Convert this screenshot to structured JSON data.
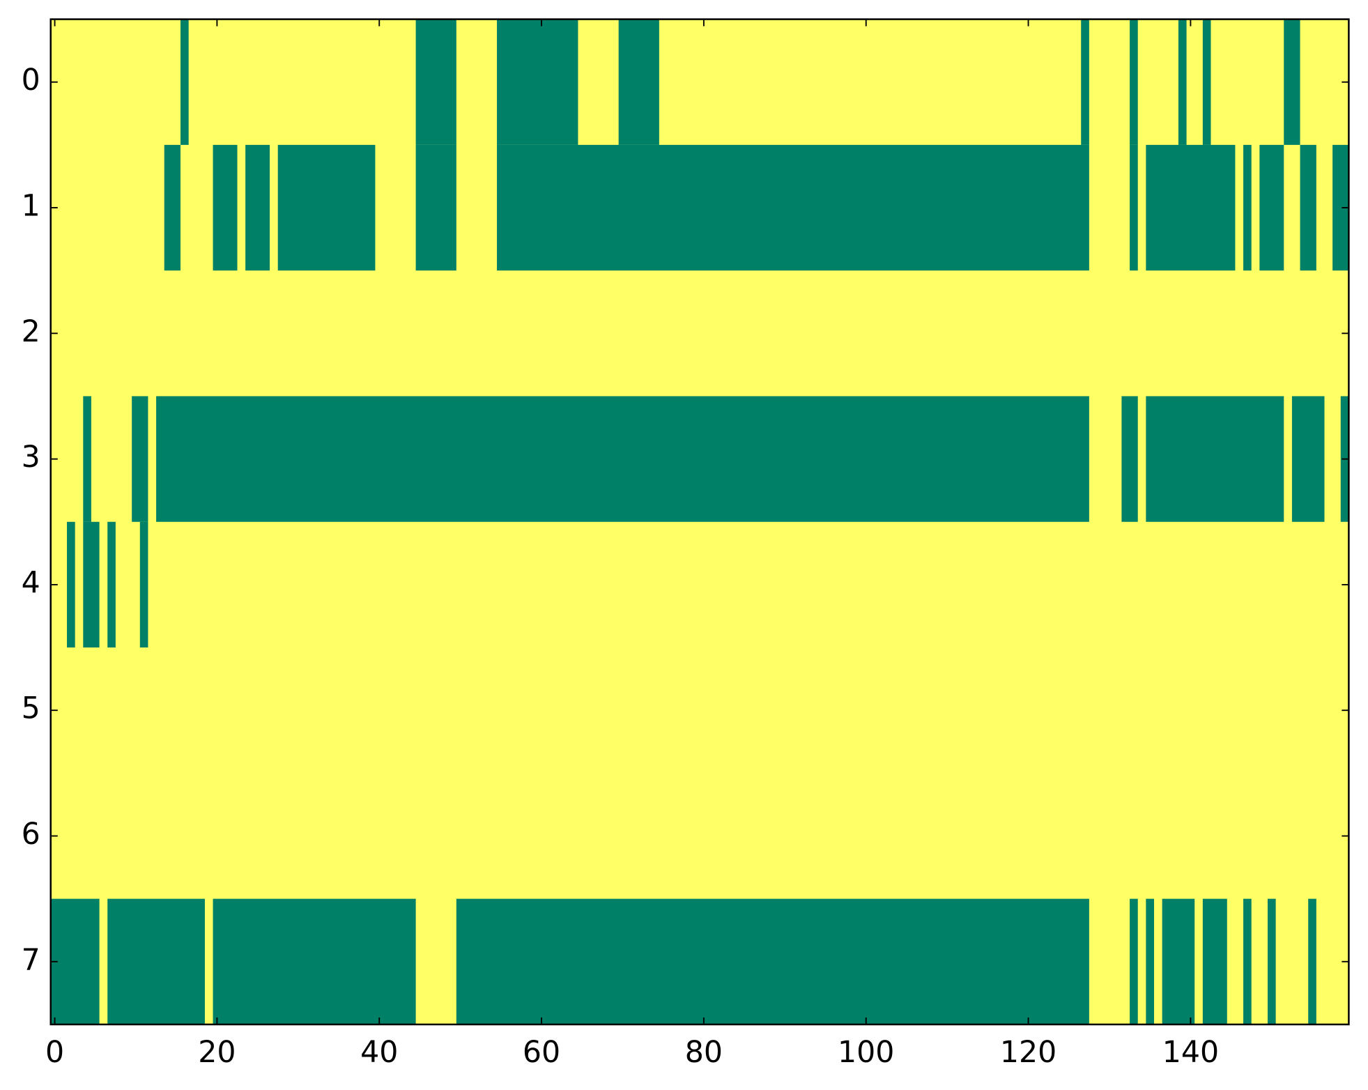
{
  "chart_data": {
    "type": "heatmap",
    "color": "#008066",
    "background": "#ffff66",
    "xlim": [
      -0.5,
      159.5
    ],
    "ylim": [
      7.5,
      -0.5
    ],
    "xticks": [
      0,
      20,
      40,
      60,
      80,
      100,
      120,
      140
    ],
    "yticks": [
      0,
      1,
      2,
      3,
      4,
      5,
      6,
      7
    ],
    "rows": [
      [
        [
          16,
          16
        ],
        [
          45,
          49
        ],
        [
          55,
          64
        ],
        [
          70,
          74
        ],
        [
          127,
          127
        ],
        [
          133,
          133
        ],
        [
          139,
          139
        ],
        [
          142,
          142
        ],
        [
          152,
          153
        ]
      ],
      [
        [
          14,
          15
        ],
        [
          20,
          22
        ],
        [
          24,
          26
        ],
        [
          28,
          39
        ],
        [
          45,
          49
        ],
        [
          55,
          127
        ],
        [
          133,
          133
        ],
        [
          135,
          145
        ],
        [
          147,
          147
        ],
        [
          149,
          151
        ],
        [
          154,
          155
        ],
        [
          158,
          159
        ]
      ],
      [],
      [
        [
          4,
          4
        ],
        [
          10,
          11
        ],
        [
          13,
          127
        ],
        [
          132,
          133
        ],
        [
          135,
          151
        ],
        [
          153,
          156
        ],
        [
          159,
          159
        ]
      ],
      [
        [
          2,
          2
        ],
        [
          4,
          5
        ],
        [
          7,
          7
        ],
        [
          11,
          11
        ]
      ],
      [],
      [],
      [
        [
          0,
          5
        ],
        [
          7,
          18
        ],
        [
          20,
          44
        ],
        [
          50,
          127
        ],
        [
          133,
          133
        ],
        [
          135,
          135
        ],
        [
          137,
          140
        ],
        [
          142,
          144
        ],
        [
          147,
          147
        ],
        [
          150,
          150
        ],
        [
          155,
          155
        ]
      ]
    ]
  }
}
